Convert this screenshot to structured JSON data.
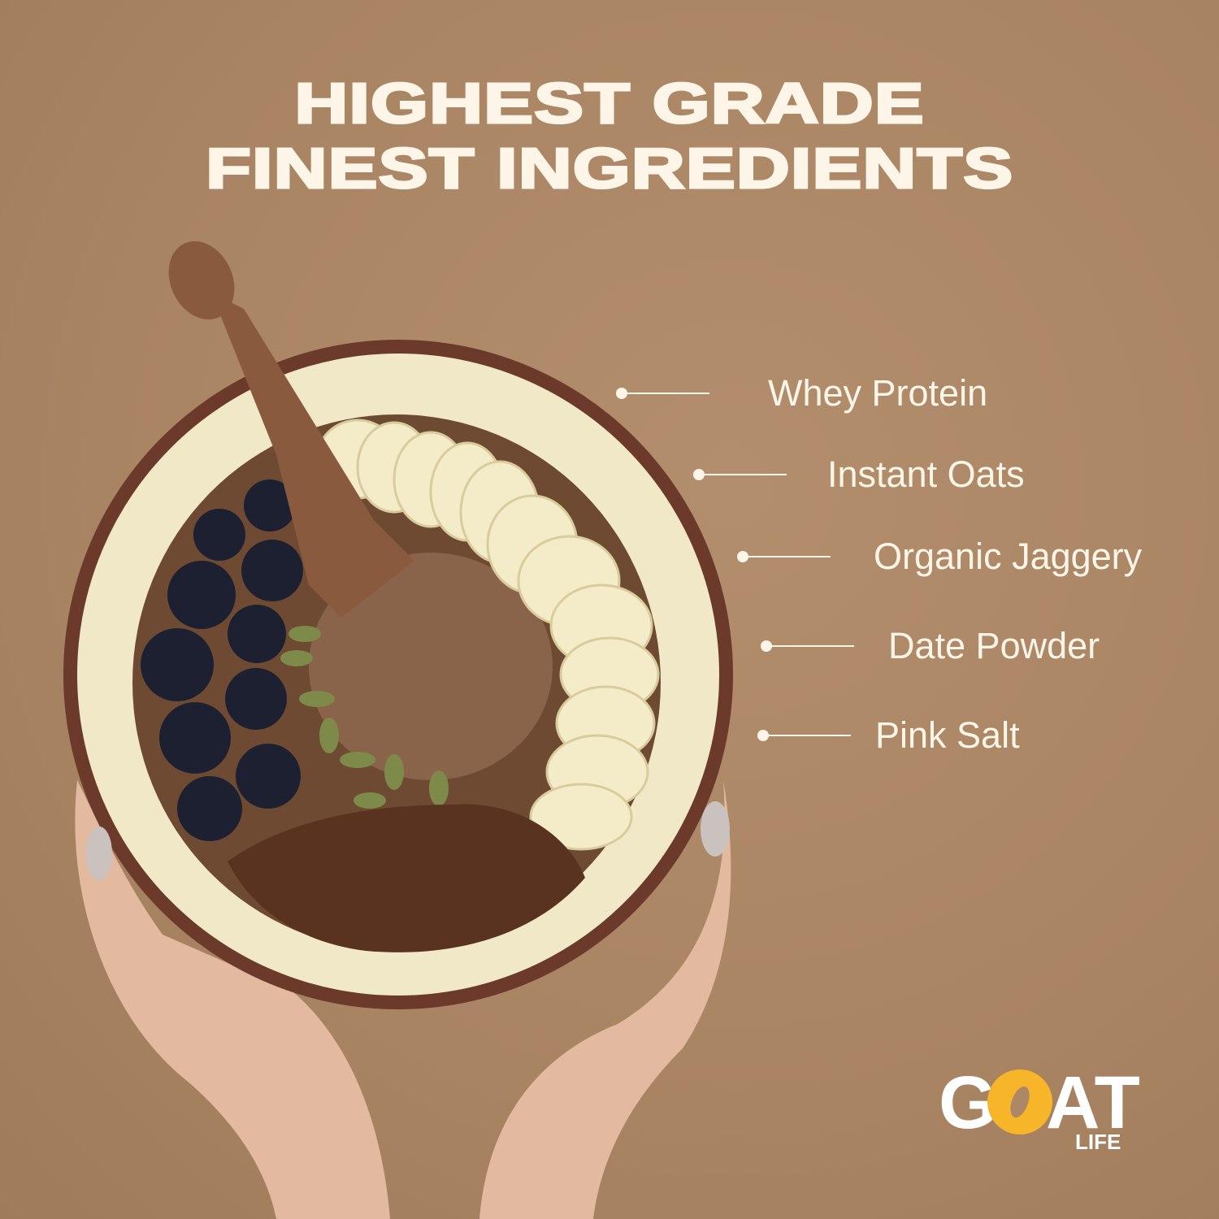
{
  "headline": {
    "line1": "HIGHEST GRADE",
    "line2": "FINEST INGREDIENTS"
  },
  "ingredients": [
    {
      "label": "Whey Protein"
    },
    {
      "label": "Instant Oats"
    },
    {
      "label": "Organic Jaggery"
    },
    {
      "label": "Date Powder"
    },
    {
      "label": "Pink Salt"
    }
  ],
  "logo": {
    "main": "GOAT",
    "sub": "LIFE",
    "accent_color": "#f7b52a"
  },
  "colors": {
    "background": "#ad8866",
    "text": "#fdf5e8",
    "bowl_rim": "#6b3a2a",
    "bowl_inner": "#f1e8c8"
  }
}
